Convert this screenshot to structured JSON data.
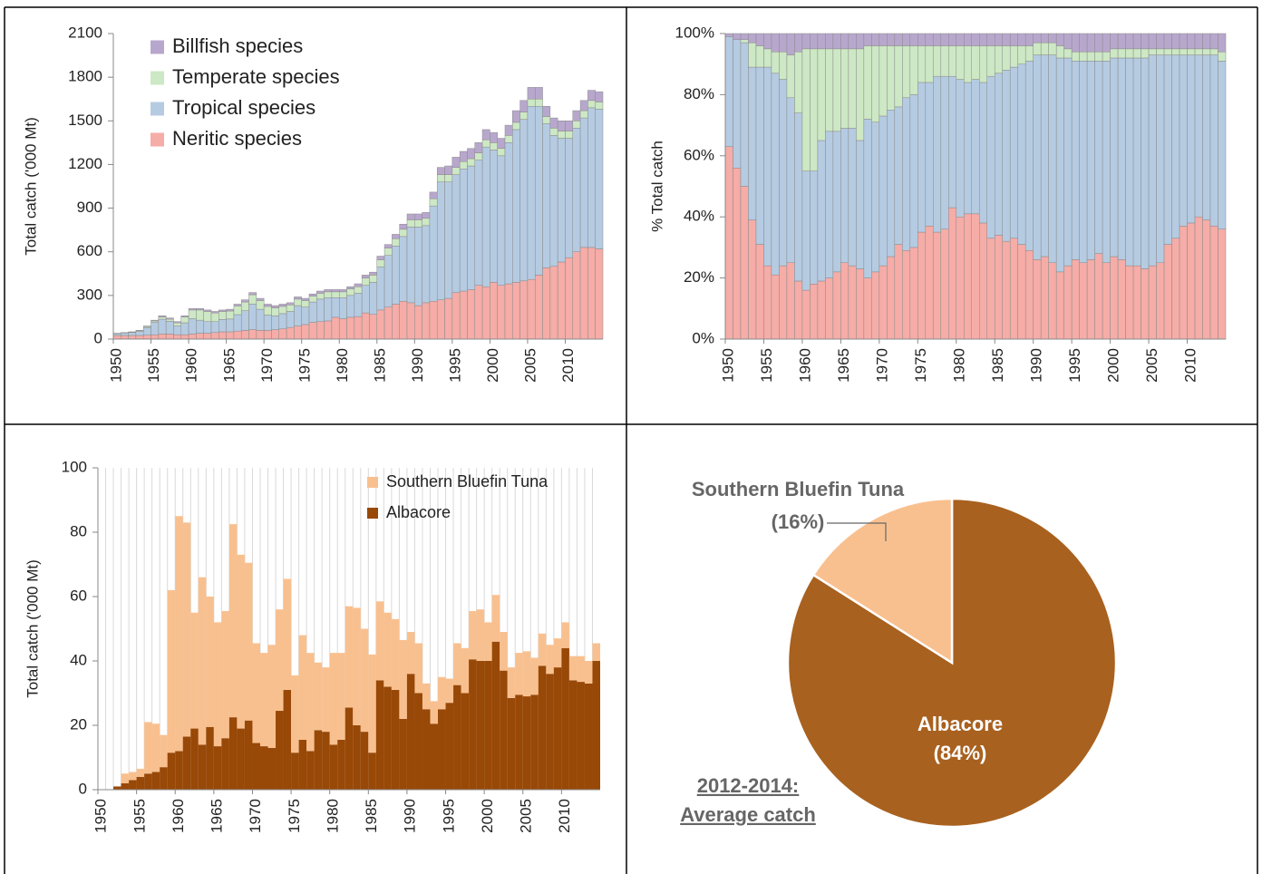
{
  "chart_data": [
    {
      "type": "stacked-bar",
      "y_label": "Total catch ('000 Mt)",
      "x": [
        1950,
        1951,
        1952,
        1953,
        1954,
        1955,
        1956,
        1957,
        1958,
        1959,
        1960,
        1961,
        1962,
        1963,
        1964,
        1965,
        1966,
        1967,
        1968,
        1969,
        1970,
        1971,
        1972,
        1973,
        1974,
        1975,
        1976,
        1977,
        1978,
        1979,
        1980,
        1981,
        1982,
        1983,
        1984,
        1985,
        1986,
        1987,
        1988,
        1989,
        1990,
        1991,
        1992,
        1993,
        1994,
        1995,
        1996,
        1997,
        1998,
        1999,
        2000,
        2001,
        2002,
        2003,
        2004,
        2005,
        2006,
        2007,
        2008,
        2009,
        2010,
        2011,
        2012,
        2013,
        2014
      ],
      "xticks": [
        1950,
        1955,
        1960,
        1965,
        1970,
        1975,
        1980,
        1985,
        1990,
        1995,
        2000,
        2005,
        2010
      ],
      "ylim": [
        0,
        2100
      ],
      "yticks": [
        0,
        300,
        600,
        900,
        1200,
        1500,
        1800,
        2100
      ],
      "legend": true,
      "series": [
        {
          "name": "Neritic species",
          "color": "#f6aca7",
          "values": [
            25,
            25,
            25,
            25,
            27,
            30,
            35,
            35,
            30,
            30,
            35,
            40,
            40,
            45,
            50,
            50,
            55,
            60,
            65,
            60,
            60,
            65,
            70,
            80,
            90,
            100,
            115,
            120,
            125,
            150,
            140,
            150,
            155,
            180,
            170,
            200,
            220,
            240,
            260,
            250,
            230,
            250,
            260,
            270,
            280,
            320,
            330,
            340,
            370,
            360,
            390,
            370,
            380,
            390,
            400,
            410,
            440,
            490,
            500,
            530,
            560,
            600,
            630,
            630,
            620
          ]
        },
        {
          "name": "Tropical species",
          "color": "#b5cbe2",
          "values": [
            12,
            17,
            20,
            28,
            52,
            85,
            102,
            87,
            62,
            82,
            105,
            90,
            80,
            75,
            85,
            88,
            113,
            135,
            175,
            145,
            105,
            95,
            105,
            110,
            140,
            120,
            140,
            155,
            160,
            135,
            145,
            150,
            160,
            190,
            220,
            295,
            355,
            400,
            445,
            520,
            540,
            530,
            655,
            810,
            800,
            810,
            840,
            850,
            860,
            960,
            910,
            890,
            970,
            1050,
            1110,
            1190,
            1160,
            990,
            900,
            850,
            820,
            850,
            890,
            960,
            960
          ]
        },
        {
          "name": "Temperate species",
          "color": "#cde8c4",
          "values": [
            2,
            2,
            3,
            5,
            8,
            10,
            15,
            15,
            20,
            40,
            60,
            70,
            70,
            60,
            55,
            55,
            60,
            60,
            65,
            60,
            60,
            55,
            50,
            45,
            45,
            45,
            40,
            40,
            40,
            40,
            40,
            45,
            45,
            50,
            50,
            50,
            50,
            50,
            50,
            50,
            50,
            50,
            50,
            50,
            50,
            50,
            50,
            50,
            50,
            50,
            50,
            50,
            50,
            50,
            50,
            50,
            50,
            50,
            50,
            50,
            50,
            50,
            50,
            50,
            50
          ]
        },
        {
          "name": "Billfish species",
          "color": "#b8a7cd",
          "values": [
            1,
            1,
            2,
            2,
            3,
            5,
            8,
            8,
            8,
            8,
            10,
            10,
            10,
            10,
            10,
            12,
            12,
            15,
            15,
            15,
            15,
            15,
            15,
            15,
            15,
            15,
            15,
            15,
            15,
            15,
            15,
            15,
            20,
            20,
            20,
            25,
            25,
            30,
            35,
            40,
            40,
            40,
            45,
            50,
            60,
            70,
            70,
            70,
            70,
            70,
            70,
            70,
            70,
            80,
            80,
            80,
            80,
            70,
            70,
            70,
            70,
            70,
            70,
            70,
            70
          ]
        }
      ]
    },
    {
      "type": "stacked-bar",
      "y_label": "% Total catch",
      "x": [
        1950,
        1951,
        1952,
        1953,
        1954,
        1955,
        1956,
        1957,
        1958,
        1959,
        1960,
        1961,
        1962,
        1963,
        1964,
        1965,
        1966,
        1967,
        1968,
        1969,
        1970,
        1971,
        1972,
        1973,
        1974,
        1975,
        1976,
        1977,
        1978,
        1979,
        1980,
        1981,
        1982,
        1983,
        1984,
        1985,
        1986,
        1987,
        1988,
        1989,
        1990,
        1991,
        1992,
        1993,
        1994,
        1995,
        1996,
        1997,
        1998,
        1999,
        2000,
        2001,
        2002,
        2003,
        2004,
        2005,
        2006,
        2007,
        2008,
        2009,
        2010,
        2011,
        2012,
        2013,
        2014
      ],
      "xticks": [
        1950,
        1955,
        1960,
        1965,
        1970,
        1975,
        1980,
        1985,
        1990,
        1995,
        2000,
        2005,
        2010
      ],
      "ylim": [
        0,
        100
      ],
      "yticks": [
        {
          "value": 0,
          "label": "0%"
        },
        {
          "value": 20,
          "label": "20%"
        },
        {
          "value": 40,
          "label": "40%"
        },
        {
          "value": 60,
          "label": "60%"
        },
        {
          "value": 80,
          "label": "80%"
        },
        {
          "value": 100,
          "label": "100%"
        }
      ],
      "legend": false,
      "series": [
        {
          "color": "#f6aca7",
          "values": [
            63,
            56,
            50,
            39,
            31,
            24,
            21,
            24,
            25,
            19,
            16,
            18,
            19,
            20,
            22,
            25,
            24,
            23,
            20,
            22,
            24,
            27,
            31,
            29,
            30,
            35,
            37,
            35,
            36,
            43,
            40,
            41,
            41,
            38,
            33,
            34,
            32,
            33,
            31,
            29,
            26,
            27,
            25,
            22,
            24,
            26,
            25,
            26,
            28,
            25,
            27,
            26,
            24,
            24,
            23,
            24,
            25,
            31,
            33,
            37,
            38,
            40,
            39,
            37,
            36
          ]
        },
        {
          "color": "#b5cbe2",
          "values": [
            36,
            42,
            47,
            50,
            58,
            65,
            66,
            61,
            54,
            55,
            39,
            37,
            46,
            48,
            46,
            44,
            45,
            42,
            52,
            49,
            49,
            48,
            45,
            50,
            50,
            49,
            47,
            51,
            50,
            43,
            45,
            43,
            44,
            46,
            53,
            53,
            56,
            56,
            59,
            62,
            67,
            66,
            68,
            70,
            68,
            65,
            66,
            65,
            63,
            66,
            65,
            66,
            68,
            68,
            69,
            69,
            68,
            62,
            60,
            56,
            55,
            53,
            54,
            56,
            55
          ]
        },
        {
          "color": "#cde8c4",
          "values": [
            0,
            0,
            1,
            8,
            7,
            6,
            7,
            9,
            14,
            20,
            40,
            40,
            30,
            27,
            27,
            26,
            26,
            30,
            24,
            25,
            23,
            21,
            20,
            17,
            16,
            12,
            12,
            10,
            10,
            10,
            11,
            12,
            11,
            12,
            10,
            9,
            8,
            7,
            6,
            5,
            4,
            4,
            4,
            4,
            3,
            3,
            3,
            3,
            3,
            3,
            3,
            3,
            3,
            3,
            3,
            2,
            2,
            2,
            2,
            2,
            2,
            2,
            2,
            2,
            3
          ]
        },
        {
          "color": "#b8a7cd",
          "values": [
            1,
            2,
            2,
            3,
            4,
            5,
            6,
            6,
            7,
            6,
            5,
            5,
            5,
            5,
            5,
            5,
            5,
            5,
            4,
            4,
            4,
            4,
            4,
            4,
            4,
            4,
            4,
            4,
            4,
            4,
            4,
            4,
            4,
            4,
            4,
            4,
            4,
            4,
            4,
            4,
            3,
            3,
            3,
            4,
            5,
            6,
            6,
            6,
            6,
            6,
            5,
            5,
            5,
            5,
            5,
            5,
            5,
            5,
            5,
            5,
            5,
            5,
            5,
            5,
            6
          ]
        }
      ]
    },
    {
      "type": "stacked-bar",
      "y_label": "Total catch ('000 Mt)",
      "x": [
        1950,
        1951,
        1952,
        1953,
        1954,
        1955,
        1956,
        1957,
        1958,
        1959,
        1960,
        1961,
        1962,
        1963,
        1964,
        1965,
        1966,
        1967,
        1968,
        1969,
        1970,
        1971,
        1972,
        1973,
        1974,
        1975,
        1976,
        1977,
        1978,
        1979,
        1980,
        1981,
        1982,
        1983,
        1984,
        1985,
        1986,
        1987,
        1988,
        1989,
        1990,
        1991,
        1992,
        1993,
        1994,
        1995,
        1996,
        1997,
        1998,
        1999,
        2000,
        2001,
        2002,
        2003,
        2004,
        2005,
        2006,
        2007,
        2008,
        2009,
        2010,
        2011,
        2012,
        2013,
        2014
      ],
      "xticks": [
        1950,
        1955,
        1960,
        1965,
        1970,
        1975,
        1980,
        1985,
        1990,
        1995,
        2000,
        2005,
        2010
      ],
      "ylim": [
        0,
        100
      ],
      "yticks": [
        0,
        20,
        40,
        60,
        80,
        100
      ],
      "legend": true,
      "xgrid": true,
      "series": [
        {
          "name": "Albacore",
          "color": "#984807",
          "values": [
            0,
            0,
            1,
            2,
            3,
            4,
            5,
            5.5,
            7,
            11.5,
            12,
            16.5,
            19,
            14,
            19.5,
            13.5,
            16,
            22.5,
            19,
            21.5,
            14.5,
            13.5,
            13,
            24.5,
            31,
            11.5,
            15.5,
            12,
            18.5,
            18,
            14,
            15.5,
            25.5,
            20,
            18,
            11.5,
            34,
            32,
            31,
            22,
            36,
            30,
            25,
            20.5,
            25,
            27,
            32.5,
            30,
            40.5,
            40,
            40,
            46,
            37,
            28.5,
            29.5,
            29,
            29.5,
            38.5,
            36,
            38,
            44,
            34,
            33.5,
            33,
            40
          ]
        },
        {
          "name": "Southern Bluefin Tuna",
          "color": "#f9c08f",
          "values": [
            0,
            0,
            0,
            3,
            2.5,
            2.5,
            16,
            15,
            10,
            50.5,
            73,
            66.5,
            36,
            52,
            40.5,
            38.5,
            39.5,
            60,
            54,
            49,
            31,
            29,
            32,
            31.5,
            34.5,
            24,
            32.5,
            30.5,
            21,
            20,
            28.5,
            27,
            31.5,
            36.5,
            32,
            30.5,
            24.5,
            23,
            22,
            24.5,
            13,
            15.5,
            8,
            7,
            10,
            7.5,
            13,
            14,
            15,
            16,
            12,
            14.5,
            12,
            9.5,
            13,
            14,
            11.5,
            10,
            9,
            9,
            8,
            7.5,
            8,
            7,
            5.5
          ]
        }
      ]
    },
    {
      "type": "pie",
      "categories": [
        "Albacore",
        "Southern Bluefin Tuna"
      ],
      "values": [
        84,
        16
      ],
      "value_labels": [
        "(84%)",
        "(16%)"
      ],
      "colors": [
        "#a8611f",
        "#f9c08f"
      ],
      "annotations": [
        "2012-2014:",
        "Average catch"
      ]
    }
  ]
}
